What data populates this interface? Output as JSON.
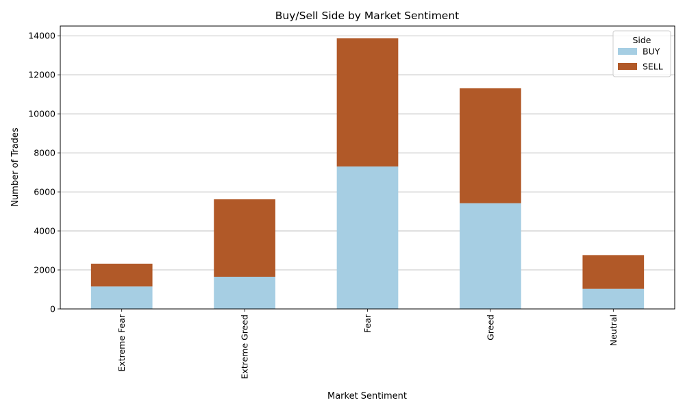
{
  "chart_data": {
    "type": "bar",
    "stacked": true,
    "title": "Buy/Sell Side by Market Sentiment",
    "xlabel": "Market Sentiment",
    "ylabel": "Number of Trades",
    "categories": [
      "Extreme Fear",
      "Extreme Greed",
      "Fear",
      "Greed",
      "Neutral"
    ],
    "series": [
      {
        "name": "BUY",
        "color": "#a6cee3",
        "values": [
          1150,
          1650,
          7300,
          5420,
          1030
        ]
      },
      {
        "name": "SELL",
        "color": "#b15928",
        "values": [
          1170,
          3970,
          6570,
          5890,
          1730
        ]
      }
    ],
    "ylim": [
      0,
      14500
    ],
    "yticks": [
      0,
      2000,
      4000,
      6000,
      8000,
      10000,
      12000,
      14000
    ],
    "grid": "horizontal",
    "legend": {
      "title": "Side",
      "position": "top-right"
    }
  }
}
